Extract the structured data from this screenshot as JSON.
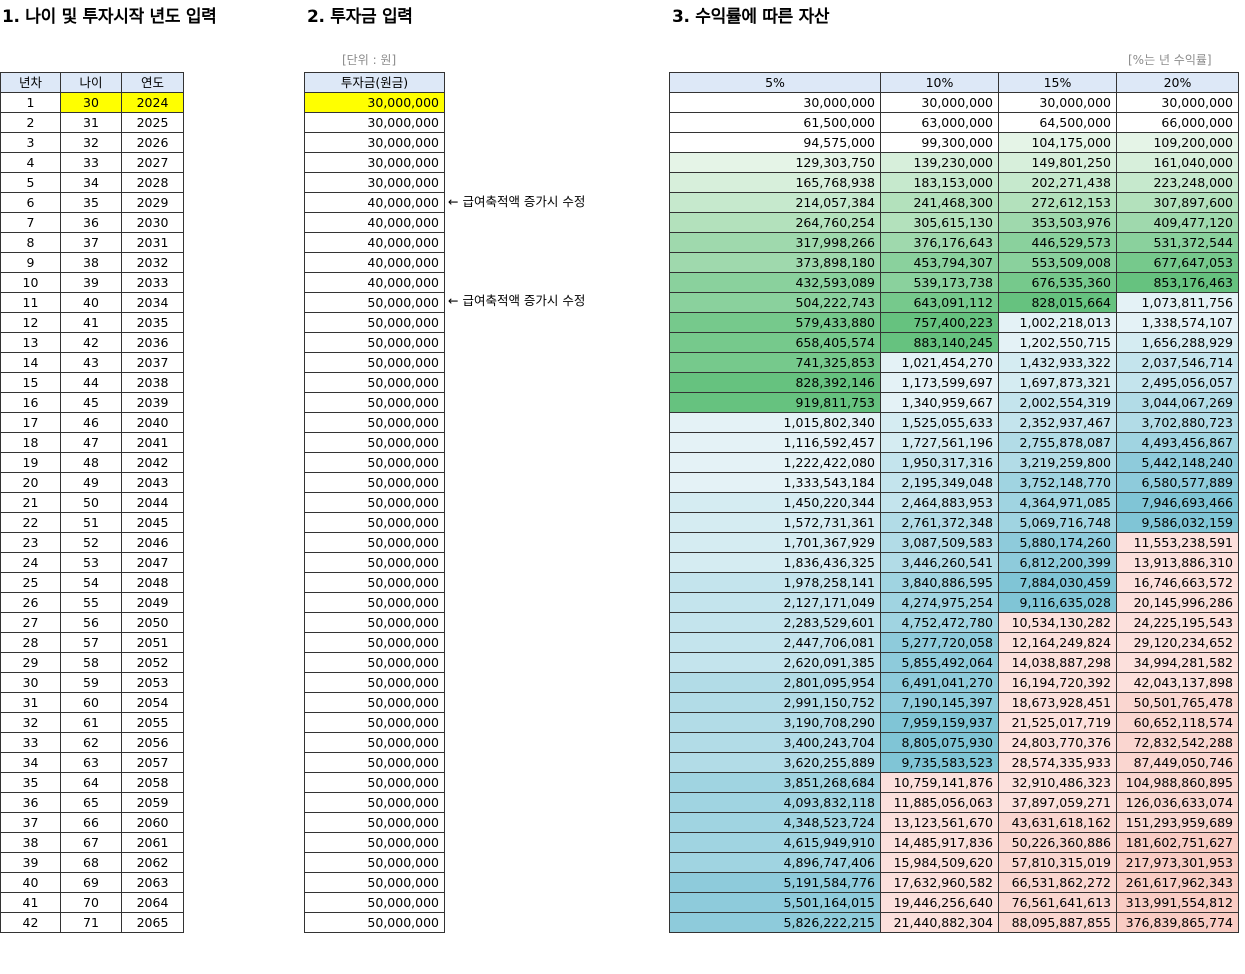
{
  "headings": {
    "h1": "1. 나이 및 투자시작 년도 입력",
    "h2": "2. 투자금 입력",
    "h3": "3. 수익률에 따른 자산"
  },
  "notes": {
    "unit": "[단위 : 원]",
    "rate": "[%는 년 수익률]"
  },
  "annotation": "← 급여축적액 증가시 수정",
  "annotation_rows": [
    6,
    11
  ],
  "table1": {
    "headers": [
      "년차",
      "나이",
      "연도"
    ]
  },
  "table2": {
    "header": "투자금(원금)"
  },
  "table3": {
    "headers": [
      "5%",
      "10%",
      "15%",
      "20%"
    ]
  },
  "colors": {
    "highlight": "#ffff00",
    "header_bg": "#dde8f7",
    "green_scale": [
      "#e5f4e7",
      "#d7efdb",
      "#c6e9cd",
      "#b3e1bc",
      "#9fd9ad",
      "#8ad19d",
      "#76c98c",
      "#66c27f"
    ],
    "blue_scale": [
      "#e4f2f6",
      "#d5ecf2",
      "#c4e4ed",
      "#b2dce7",
      "#a0d4e1",
      "#8ecbdb",
      "#80c5d6"
    ],
    "red_scale": [
      "#fce0dc",
      "#fad6d0",
      "#f9ccc4",
      "#f7c3ba"
    ]
  },
  "rows": [
    {
      "n": "1",
      "age": "30",
      "year": "2024",
      "inv": "30,000,000",
      "v": [
        "30,000,000",
        "30,000,000",
        "30,000,000",
        "30,000,000"
      ]
    },
    {
      "n": "2",
      "age": "31",
      "year": "2025",
      "inv": "30,000,000",
      "v": [
        "61,500,000",
        "63,000,000",
        "64,500,000",
        "66,000,000"
      ]
    },
    {
      "n": "3",
      "age": "32",
      "year": "2026",
      "inv": "30,000,000",
      "v": [
        "94,575,000",
        "99,300,000",
        "104,175,000",
        "109,200,000"
      ]
    },
    {
      "n": "4",
      "age": "33",
      "year": "2027",
      "inv": "30,000,000",
      "v": [
        "129,303,750",
        "139,230,000",
        "149,801,250",
        "161,040,000"
      ]
    },
    {
      "n": "5",
      "age": "34",
      "year": "2028",
      "inv": "30,000,000",
      "v": [
        "165,768,938",
        "183,153,000",
        "202,271,438",
        "223,248,000"
      ]
    },
    {
      "n": "6",
      "age": "35",
      "year": "2029",
      "inv": "40,000,000",
      "v": [
        "214,057,384",
        "241,468,300",
        "272,612,153",
        "307,897,600"
      ]
    },
    {
      "n": "7",
      "age": "36",
      "year": "2030",
      "inv": "40,000,000",
      "v": [
        "264,760,254",
        "305,615,130",
        "353,503,976",
        "409,477,120"
      ]
    },
    {
      "n": "8",
      "age": "37",
      "year": "2031",
      "inv": "40,000,000",
      "v": [
        "317,998,266",
        "376,176,643",
        "446,529,573",
        "531,372,544"
      ]
    },
    {
      "n": "9",
      "age": "38",
      "year": "2032",
      "inv": "40,000,000",
      "v": [
        "373,898,180",
        "453,794,307",
        "553,509,008",
        "677,647,053"
      ]
    },
    {
      "n": "10",
      "age": "39",
      "year": "2033",
      "inv": "40,000,000",
      "v": [
        "432,593,089",
        "539,173,738",
        "676,535,360",
        "853,176,463"
      ]
    },
    {
      "n": "11",
      "age": "40",
      "year": "2034",
      "inv": "50,000,000",
      "v": [
        "504,222,743",
        "643,091,112",
        "828,015,664",
        "1,073,811,756"
      ]
    },
    {
      "n": "12",
      "age": "41",
      "year": "2035",
      "inv": "50,000,000",
      "v": [
        "579,433,880",
        "757,400,223",
        "1,002,218,013",
        "1,338,574,107"
      ]
    },
    {
      "n": "13",
      "age": "42",
      "year": "2036",
      "inv": "50,000,000",
      "v": [
        "658,405,574",
        "883,140,245",
        "1,202,550,715",
        "1,656,288,929"
      ]
    },
    {
      "n": "14",
      "age": "43",
      "year": "2037",
      "inv": "50,000,000",
      "v": [
        "741,325,853",
        "1,021,454,270",
        "1,432,933,322",
        "2,037,546,714"
      ]
    },
    {
      "n": "15",
      "age": "44",
      "year": "2038",
      "inv": "50,000,000",
      "v": [
        "828,392,146",
        "1,173,599,697",
        "1,697,873,321",
        "2,495,056,057"
      ]
    },
    {
      "n": "16",
      "age": "45",
      "year": "2039",
      "inv": "50,000,000",
      "v": [
        "919,811,753",
        "1,340,959,667",
        "2,002,554,319",
        "3,044,067,269"
      ]
    },
    {
      "n": "17",
      "age": "46",
      "year": "2040",
      "inv": "50,000,000",
      "v": [
        "1,015,802,340",
        "1,525,055,633",
        "2,352,937,467",
        "3,702,880,723"
      ]
    },
    {
      "n": "18",
      "age": "47",
      "year": "2041",
      "inv": "50,000,000",
      "v": [
        "1,116,592,457",
        "1,727,561,196",
        "2,755,878,087",
        "4,493,456,867"
      ]
    },
    {
      "n": "19",
      "age": "48",
      "year": "2042",
      "inv": "50,000,000",
      "v": [
        "1,222,422,080",
        "1,950,317,316",
        "3,219,259,800",
        "5,442,148,240"
      ]
    },
    {
      "n": "20",
      "age": "49",
      "year": "2043",
      "inv": "50,000,000",
      "v": [
        "1,333,543,184",
        "2,195,349,048",
        "3,752,148,770",
        "6,580,577,889"
      ]
    },
    {
      "n": "21",
      "age": "50",
      "year": "2044",
      "inv": "50,000,000",
      "v": [
        "1,450,220,344",
        "2,464,883,953",
        "4,364,971,085",
        "7,946,693,466"
      ]
    },
    {
      "n": "22",
      "age": "51",
      "year": "2045",
      "inv": "50,000,000",
      "v": [
        "1,572,731,361",
        "2,761,372,348",
        "5,069,716,748",
        "9,586,032,159"
      ]
    },
    {
      "n": "23",
      "age": "52",
      "year": "2046",
      "inv": "50,000,000",
      "v": [
        "1,701,367,929",
        "3,087,509,583",
        "5,880,174,260",
        "11,553,238,591"
      ]
    },
    {
      "n": "24",
      "age": "53",
      "year": "2047",
      "inv": "50,000,000",
      "v": [
        "1,836,436,325",
        "3,446,260,541",
        "6,812,200,399",
        "13,913,886,310"
      ]
    },
    {
      "n": "25",
      "age": "54",
      "year": "2048",
      "inv": "50,000,000",
      "v": [
        "1,978,258,141",
        "3,840,886,595",
        "7,884,030,459",
        "16,746,663,572"
      ]
    },
    {
      "n": "26",
      "age": "55",
      "year": "2049",
      "inv": "50,000,000",
      "v": [
        "2,127,171,049",
        "4,274,975,254",
        "9,116,635,028",
        "20,145,996,286"
      ]
    },
    {
      "n": "27",
      "age": "56",
      "year": "2050",
      "inv": "50,000,000",
      "v": [
        "2,283,529,601",
        "4,752,472,780",
        "10,534,130,282",
        "24,225,195,543"
      ]
    },
    {
      "n": "28",
      "age": "57",
      "year": "2051",
      "inv": "50,000,000",
      "v": [
        "2,447,706,081",
        "5,277,720,058",
        "12,164,249,824",
        "29,120,234,652"
      ]
    },
    {
      "n": "29",
      "age": "58",
      "year": "2052",
      "inv": "50,000,000",
      "v": [
        "2,620,091,385",
        "5,855,492,064",
        "14,038,887,298",
        "34,994,281,582"
      ]
    },
    {
      "n": "30",
      "age": "59",
      "year": "2053",
      "inv": "50,000,000",
      "v": [
        "2,801,095,954",
        "6,491,041,270",
        "16,194,720,392",
        "42,043,137,898"
      ]
    },
    {
      "n": "31",
      "age": "60",
      "year": "2054",
      "inv": "50,000,000",
      "v": [
        "2,991,150,752",
        "7,190,145,397",
        "18,673,928,451",
        "50,501,765,478"
      ]
    },
    {
      "n": "32",
      "age": "61",
      "year": "2055",
      "inv": "50,000,000",
      "v": [
        "3,190,708,290",
        "7,959,159,937",
        "21,525,017,719",
        "60,652,118,574"
      ]
    },
    {
      "n": "33",
      "age": "62",
      "year": "2056",
      "inv": "50,000,000",
      "v": [
        "3,400,243,704",
        "8,805,075,930",
        "24,803,770,376",
        "72,832,542,288"
      ]
    },
    {
      "n": "34",
      "age": "63",
      "year": "2057",
      "inv": "50,000,000",
      "v": [
        "3,620,255,889",
        "9,735,583,523",
        "28,574,335,933",
        "87,449,050,746"
      ]
    },
    {
      "n": "35",
      "age": "64",
      "year": "2058",
      "inv": "50,000,000",
      "v": [
        "3,851,268,684",
        "10,759,141,876",
        "32,910,486,323",
        "104,988,860,895"
      ]
    },
    {
      "n": "36",
      "age": "65",
      "year": "2059",
      "inv": "50,000,000",
      "v": [
        "4,093,832,118",
        "11,885,056,063",
        "37,897,059,271",
        "126,036,633,074"
      ]
    },
    {
      "n": "37",
      "age": "66",
      "year": "2060",
      "inv": "50,000,000",
      "v": [
        "4,348,523,724",
        "13,123,561,670",
        "43,631,618,162",
        "151,293,959,689"
      ]
    },
    {
      "n": "38",
      "age": "67",
      "year": "2061",
      "inv": "50,000,000",
      "v": [
        "4,615,949,910",
        "14,485,917,836",
        "50,226,360,886",
        "181,602,751,627"
      ]
    },
    {
      "n": "39",
      "age": "68",
      "year": "2062",
      "inv": "50,000,000",
      "v": [
        "4,896,747,406",
        "15,984,509,620",
        "57,810,315,019",
        "217,973,301,953"
      ]
    },
    {
      "n": "40",
      "age": "69",
      "year": "2063",
      "inv": "50,000,000",
      "v": [
        "5,191,584,776",
        "17,632,960,582",
        "66,531,862,272",
        "261,617,962,343"
      ]
    },
    {
      "n": "41",
      "age": "70",
      "year": "2064",
      "inv": "50,000,000",
      "v": [
        "5,501,164,015",
        "19,446,256,640",
        "76,561,641,613",
        "313,991,554,812"
      ]
    },
    {
      "n": "42",
      "age": "71",
      "year": "2065",
      "inv": "50,000,000",
      "v": [
        "5,826,222,215",
        "21,440,882,304",
        "88,095,887,855",
        "376,839,865,774"
      ]
    }
  ]
}
